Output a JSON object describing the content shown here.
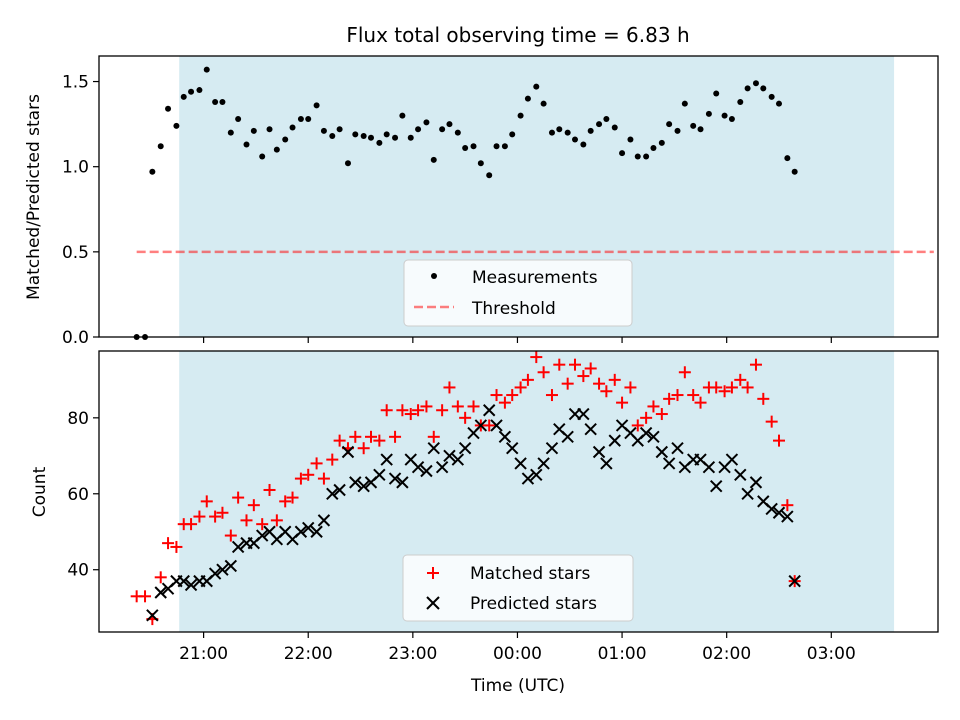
{
  "figure": {
    "title": "Flux total observing time = 6.83 h",
    "xlabel": "Time (UTC)"
  },
  "colors": {
    "span": "#add8e6",
    "measurements": "#000000",
    "threshold": "#ff0000",
    "matched": "#ff0000",
    "predicted": "#000000"
  },
  "chart_data": [
    {
      "type": "scatter",
      "title": "Flux total observing time = 6.83 h",
      "xlabel": "",
      "ylabel": "Matched/Predicted stars",
      "x_axis": "time (hours after 20:00 UTC)",
      "xlim": [
        0.0,
        8.02
      ],
      "ylim": [
        0.0,
        1.65
      ],
      "yticks": [
        0.0,
        0.5,
        1.0,
        1.5
      ],
      "ytick_labels": [
        "0.0",
        "0.5",
        "1.0",
        "1.5"
      ],
      "shaded_span": {
        "x_start": "20:46",
        "x_end": "03:36"
      },
      "legend": {
        "position": "lower center",
        "entries": [
          "Measurements",
          "Threshold"
        ]
      },
      "threshold": {
        "name": "Threshold",
        "y": 0.5,
        "x_range": [
          0.36,
          7.98
        ]
      },
      "series": [
        {
          "name": "Measurements",
          "marker": "dot",
          "points": [
            [
              0.36,
              0.0
            ],
            [
              0.44,
              0.0
            ],
            [
              0.51,
              0.97
            ],
            [
              0.59,
              1.12
            ],
            [
              0.66,
              1.34
            ],
            [
              0.74,
              1.24
            ],
            [
              0.81,
              1.41
            ],
            [
              0.88,
              1.44
            ],
            [
              0.96,
              1.45
            ],
            [
              1.03,
              1.57
            ],
            [
              1.11,
              1.38
            ],
            [
              1.18,
              1.38
            ],
            [
              1.26,
              1.2
            ],
            [
              1.33,
              1.28
            ],
            [
              1.41,
              1.13
            ],
            [
              1.48,
              1.21
            ],
            [
              1.56,
              1.06
            ],
            [
              1.63,
              1.22
            ],
            [
              1.7,
              1.1
            ],
            [
              1.78,
              1.16
            ],
            [
              1.85,
              1.23
            ],
            [
              1.93,
              1.28
            ],
            [
              2.0,
              1.28
            ],
            [
              2.08,
              1.36
            ],
            [
              2.15,
              1.21
            ],
            [
              2.23,
              1.18
            ],
            [
              2.3,
              1.22
            ],
            [
              2.38,
              1.02
            ],
            [
              2.45,
              1.19
            ],
            [
              2.53,
              1.18
            ],
            [
              2.6,
              1.17
            ],
            [
              2.68,
              1.14
            ],
            [
              2.75,
              1.19
            ],
            [
              2.83,
              1.17
            ],
            [
              2.9,
              1.3
            ],
            [
              2.98,
              1.17
            ],
            [
              3.05,
              1.22
            ],
            [
              3.13,
              1.26
            ],
            [
              3.2,
              1.04
            ],
            [
              3.28,
              1.22
            ],
            [
              3.35,
              1.25
            ],
            [
              3.43,
              1.2
            ],
            [
              3.5,
              1.11
            ],
            [
              3.58,
              1.12
            ],
            [
              3.65,
              1.02
            ],
            [
              3.73,
              0.95
            ],
            [
              3.8,
              1.12
            ],
            [
              3.88,
              1.12
            ],
            [
              3.95,
              1.19
            ],
            [
              4.03,
              1.3
            ],
            [
              4.1,
              1.4
            ],
            [
              4.18,
              1.47
            ],
            [
              4.25,
              1.37
            ],
            [
              4.33,
              1.2
            ],
            [
              4.4,
              1.22
            ],
            [
              4.48,
              1.2
            ],
            [
              4.55,
              1.16
            ],
            [
              4.63,
              1.13
            ],
            [
              4.7,
              1.21
            ],
            [
              4.78,
              1.25
            ],
            [
              4.85,
              1.28
            ],
            [
              4.93,
              1.23
            ],
            [
              5.0,
              1.08
            ],
            [
              5.08,
              1.16
            ],
            [
              5.15,
              1.06
            ],
            [
              5.23,
              1.06
            ],
            [
              5.3,
              1.11
            ],
            [
              5.38,
              1.14
            ],
            [
              5.45,
              1.25
            ],
            [
              5.53,
              1.21
            ],
            [
              5.6,
              1.37
            ],
            [
              5.68,
              1.24
            ],
            [
              5.75,
              1.22
            ],
            [
              5.83,
              1.31
            ],
            [
              5.9,
              1.43
            ],
            [
              5.98,
              1.3
            ],
            [
              6.05,
              1.28
            ],
            [
              6.13,
              1.38
            ],
            [
              6.2,
              1.46
            ],
            [
              6.28,
              1.49
            ],
            [
              6.35,
              1.46
            ],
            [
              6.43,
              1.41
            ],
            [
              6.5,
              1.37
            ],
            [
              6.58,
              1.05
            ],
            [
              6.65,
              0.97
            ]
          ]
        }
      ]
    },
    {
      "type": "scatter",
      "title": "",
      "xlabel": "Time (UTC)",
      "ylabel": "Count",
      "x_axis": "time (hours after 20:00 UTC)",
      "xlim": [
        0.0,
        8.02
      ],
      "ylim": [
        23.6,
        97.6
      ],
      "yticks": [
        40,
        60,
        80
      ],
      "ytick_labels": [
        "40",
        "60",
        "80"
      ],
      "xticks": [
        1,
        2,
        3,
        4,
        5,
        6,
        7
      ],
      "xtick_labels": [
        "21:00",
        "22:00",
        "23:00",
        "00:00",
        "01:00",
        "02:00",
        "03:00"
      ],
      "shaded_span": {
        "x_start": "20:46",
        "x_end": "03:36"
      },
      "legend": {
        "position": "lower center",
        "entries": [
          "Matched stars",
          "Predicted stars"
        ]
      },
      "series": [
        {
          "name": "Matched stars",
          "marker": "plus",
          "points": [
            [
              0.36,
              33
            ],
            [
              0.44,
              33
            ],
            [
              0.51,
              27
            ],
            [
              0.59,
              38
            ],
            [
              0.66,
              47
            ],
            [
              0.74,
              46
            ],
            [
              0.81,
              52
            ],
            [
              0.88,
              52
            ],
            [
              0.96,
              54
            ],
            [
              1.03,
              58
            ],
            [
              1.11,
              54
            ],
            [
              1.18,
              55
            ],
            [
              1.26,
              49
            ],
            [
              1.33,
              59
            ],
            [
              1.41,
              53
            ],
            [
              1.48,
              57
            ],
            [
              1.56,
              52
            ],
            [
              1.63,
              61
            ],
            [
              1.7,
              53
            ],
            [
              1.78,
              58
            ],
            [
              1.85,
              59
            ],
            [
              1.93,
              64
            ],
            [
              2.0,
              65
            ],
            [
              2.08,
              68
            ],
            [
              2.15,
              64
            ],
            [
              2.23,
              69
            ],
            [
              2.3,
              74
            ],
            [
              2.38,
              72
            ],
            [
              2.45,
              75
            ],
            [
              2.53,
              72
            ],
            [
              2.6,
              75
            ],
            [
              2.68,
              74
            ],
            [
              2.75,
              82
            ],
            [
              2.83,
              75
            ],
            [
              2.9,
              82
            ],
            [
              2.98,
              81
            ],
            [
              3.05,
              82
            ],
            [
              3.13,
              83
            ],
            [
              3.2,
              75
            ],
            [
              3.28,
              82
            ],
            [
              3.35,
              88
            ],
            [
              3.43,
              83
            ],
            [
              3.5,
              80
            ],
            [
              3.58,
              83
            ],
            [
              3.65,
              78
            ],
            [
              3.73,
              78
            ],
            [
              3.8,
              86
            ],
            [
              3.88,
              84
            ],
            [
              3.95,
              86
            ],
            [
              4.03,
              88
            ],
            [
              4.1,
              90
            ],
            [
              4.18,
              96
            ],
            [
              4.25,
              92
            ],
            [
              4.33,
              86
            ],
            [
              4.4,
              94
            ],
            [
              4.48,
              89
            ],
            [
              4.55,
              94
            ],
            [
              4.63,
              91
            ],
            [
              4.7,
              93
            ],
            [
              4.78,
              89
            ],
            [
              4.85,
              87
            ],
            [
              4.93,
              90
            ],
            [
              5.0,
              84
            ],
            [
              5.08,
              88
            ],
            [
              5.15,
              78
            ],
            [
              5.23,
              80
            ],
            [
              5.3,
              83
            ],
            [
              5.38,
              81
            ],
            [
              5.45,
              85
            ],
            [
              5.53,
              86
            ],
            [
              5.6,
              92
            ],
            [
              5.68,
              86
            ],
            [
              5.75,
              84
            ],
            [
              5.83,
              88
            ],
            [
              5.9,
              88
            ],
            [
              5.98,
              87
            ],
            [
              6.05,
              88
            ],
            [
              6.13,
              90
            ],
            [
              6.2,
              88
            ],
            [
              6.28,
              94
            ],
            [
              6.35,
              85
            ],
            [
              6.43,
              79
            ],
            [
              6.5,
              74
            ],
            [
              6.58,
              57
            ],
            [
              6.65,
              37
            ]
          ]
        },
        {
          "name": "Predicted stars",
          "marker": "x",
          "points": [
            [
              0.51,
              28
            ],
            [
              0.59,
              34
            ],
            [
              0.66,
              35
            ],
            [
              0.74,
              37
            ],
            [
              0.81,
              37
            ],
            [
              0.88,
              36
            ],
            [
              0.96,
              37
            ],
            [
              1.03,
              37
            ],
            [
              1.11,
              39
            ],
            [
              1.18,
              40
            ],
            [
              1.26,
              41
            ],
            [
              1.33,
              46
            ],
            [
              1.41,
              47
            ],
            [
              1.48,
              47
            ],
            [
              1.56,
              49
            ],
            [
              1.63,
              50
            ],
            [
              1.7,
              48
            ],
            [
              1.78,
              50
            ],
            [
              1.85,
              48
            ],
            [
              1.93,
              50
            ],
            [
              2.0,
              51
            ],
            [
              2.08,
              50
            ],
            [
              2.15,
              53
            ],
            [
              2.23,
              60
            ],
            [
              2.3,
              61
            ],
            [
              2.38,
              71
            ],
            [
              2.45,
              63
            ],
            [
              2.53,
              62
            ],
            [
              2.6,
              63
            ],
            [
              2.68,
              65
            ],
            [
              2.75,
              69
            ],
            [
              2.83,
              64
            ],
            [
              2.9,
              63
            ],
            [
              2.98,
              69
            ],
            [
              3.05,
              67
            ],
            [
              3.13,
              66
            ],
            [
              3.2,
              72
            ],
            [
              3.28,
              67
            ],
            [
              3.35,
              70
            ],
            [
              3.43,
              69
            ],
            [
              3.5,
              72
            ],
            [
              3.58,
              76
            ],
            [
              3.65,
              78
            ],
            [
              3.73,
              82
            ],
            [
              3.8,
              78
            ],
            [
              3.88,
              75
            ],
            [
              3.95,
              72
            ],
            [
              4.03,
              68
            ],
            [
              4.1,
              64
            ],
            [
              4.18,
              65
            ],
            [
              4.25,
              68
            ],
            [
              4.33,
              72
            ],
            [
              4.4,
              77
            ],
            [
              4.48,
              75
            ],
            [
              4.55,
              81
            ],
            [
              4.63,
              81
            ],
            [
              4.7,
              77
            ],
            [
              4.78,
              71
            ],
            [
              4.85,
              68
            ],
            [
              4.93,
              74
            ],
            [
              5.0,
              78
            ],
            [
              5.08,
              76
            ],
            [
              5.15,
              74
            ],
            [
              5.23,
              76
            ],
            [
              5.3,
              75
            ],
            [
              5.38,
              71
            ],
            [
              5.45,
              68
            ],
            [
              5.53,
              72
            ],
            [
              5.6,
              67
            ],
            [
              5.68,
              69
            ],
            [
              5.75,
              69
            ],
            [
              5.83,
              67
            ],
            [
              5.9,
              62
            ],
            [
              5.98,
              67
            ],
            [
              6.05,
              69
            ],
            [
              6.13,
              65
            ],
            [
              6.2,
              60
            ],
            [
              6.28,
              63
            ],
            [
              6.35,
              58
            ],
            [
              6.43,
              56
            ],
            [
              6.5,
              55
            ],
            [
              6.58,
              54
            ],
            [
              6.65,
              37
            ]
          ]
        }
      ]
    }
  ]
}
